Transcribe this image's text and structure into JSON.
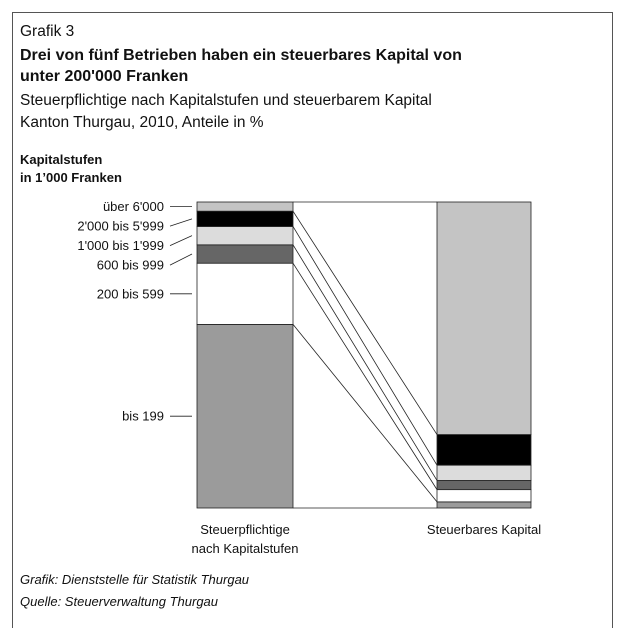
{
  "chart_data": {
    "type": "stacked_bar_100",
    "kicker": "Grafik 3",
    "title": [
      "Drei von fünf Betrieben haben ein steuerbares Kapital von",
      "unter 200'000 Franken"
    ],
    "subtitle": [
      "Steuerpflichtige nach Kapitalstufen und steuerbarem Kapital",
      "Kanton Thurgau, 2010, Anteile in %"
    ],
    "legend_title": [
      "Kapitalstufen",
      "in 1’000 Franken"
    ],
    "categories": [
      [
        "Steuerpflichtige",
        "nach Kapitalstufen"
      ],
      [
        "Steuerbares Kapital"
      ]
    ],
    "series": [
      {
        "name": "bis 199",
        "color": "#9b9b9b",
        "values": [
          60,
          2
        ]
      },
      {
        "name": "200 bis 599",
        "color": "#ffffff",
        "values": [
          20,
          4
        ]
      },
      {
        "name": "600 bis 999",
        "color": "#666666",
        "values": [
          6,
          3
        ]
      },
      {
        "name": "1'000 bis 1'999",
        "color": "#dcdcdc",
        "values": [
          6,
          5
        ]
      },
      {
        "name": "2'000 bis 5'999",
        "color": "#000000",
        "values": [
          5,
          10
        ]
      },
      {
        "name": "über 6'000",
        "color": "#c4c4c4",
        "values": [
          3,
          76
        ]
      }
    ],
    "ylim": [
      0,
      100
    ],
    "source": [
      "Grafik: Dienststelle für Statistik Thurgau",
      "Quelle: Steuerverwaltung Thurgau"
    ]
  }
}
